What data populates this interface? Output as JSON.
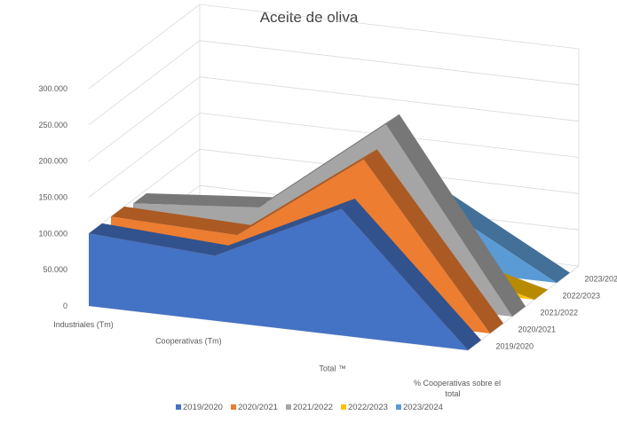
{
  "chart_data": {
    "type": "area",
    "variant": "3d-area",
    "title": "Aceite de oliva",
    "categories": [
      "Industriales (Tm)",
      "Cooperativas (Tm)",
      "Total ™",
      "% Cooperativas sobre el total"
    ],
    "y_ticks": [
      "0",
      "50.000",
      "100.000",
      "150.000",
      "200.000",
      "250.000",
      "300.000"
    ],
    "ylim": [
      0,
      300000
    ],
    "grid": true,
    "legend_position": "bottom",
    "series": [
      {
        "name": "2019/2020",
        "color": "#4472C4",
        "values": [
          100000,
          90000,
          175000,
          0
        ]
      },
      {
        "name": "2020/2021",
        "color": "#ED7D31",
        "values": [
          100000,
          95000,
          220000,
          0
        ]
      },
      {
        "name": "2021/2022",
        "color": "#A5A5A5",
        "values": [
          95000,
          110000,
          245000,
          0
        ]
      },
      {
        "name": "2022/2023",
        "color": "#FFC000",
        "values": [
          20000,
          20000,
          45000,
          0
        ]
      },
      {
        "name": "2023/2024",
        "color": "#5B9BD5",
        "values": [
          45000,
          50000,
          95000,
          0
        ]
      }
    ]
  }
}
